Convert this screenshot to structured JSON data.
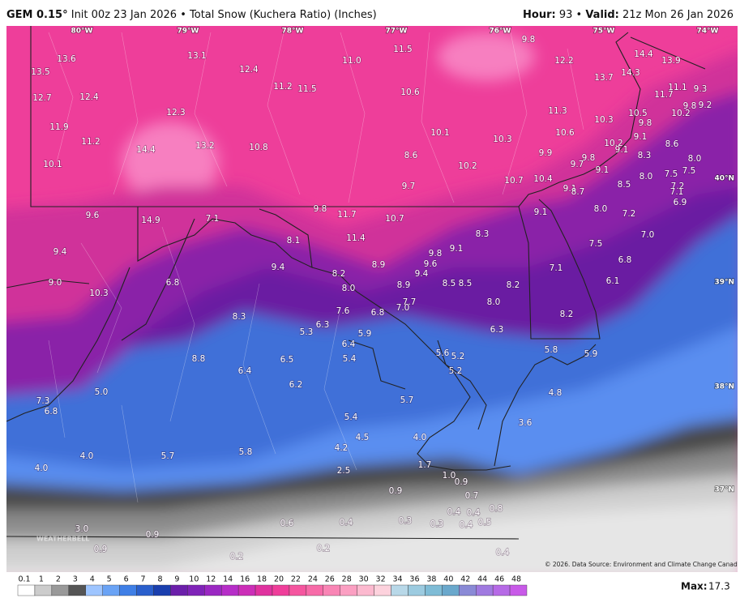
{
  "header": {
    "model": "GEM 0.15°",
    "init": "Init 00z 23 Jan 2026 • Total Snow (Kuchera Ratio) (Inches)",
    "hour_label": "Hour:",
    "hour": "93 •",
    "valid_label": "Valid:",
    "valid": "21z Mon 26 Jan 2026"
  },
  "map": {
    "longitudes": [
      "80°W",
      "79°W",
      "78°W",
      "77°W",
      "76°W",
      "75°W",
      "74°W"
    ],
    "latitudes": [
      "40°N",
      "39°N",
      "38°N",
      "37°N"
    ],
    "labels": [
      "13.6",
      "13.5",
      "12.7",
      "12.4",
      "13.1",
      "12.4",
      "11.0",
      "11.5",
      "9.8",
      "12.2",
      "14.4",
      "13.9",
      "13.7",
      "14.3",
      "11.2",
      "11.5",
      "10.6",
      "11.1",
      "9.3",
      "11.7",
      "9.8",
      "9.2",
      "10.2",
      "12.3",
      "11.3",
      "10.5",
      "10.3",
      "9.8",
      "11.9",
      "10.1",
      "10.3",
      "10.6",
      "10.2",
      "9.1",
      "11.2",
      "14.4",
      "13.2",
      "10.8",
      "8.6",
      "9.9",
      "9.1",
      "8.3",
      "8.6",
      "9.8",
      "8.0",
      "10.1",
      "10.2",
      "9.7",
      "9.1",
      "8.0",
      "7.5",
      "7.5",
      "10.7",
      "10.4",
      "8.5",
      "7.2",
      "7.1",
      "9.7",
      "9.1",
      "8.7",
      "6.9",
      "9.1",
      "8.0",
      "7.2",
      "9.6",
      "14.9",
      "7.1",
      "9.8",
      "11.7",
      "10.7",
      "7.0",
      "8.3",
      "8.1",
      "11.4",
      "7.5",
      "9.4",
      "9.1",
      "9.8",
      "9.6",
      "9.4",
      "8.9",
      "9.4",
      "6.8",
      "7.1",
      "8.2",
      "6.8",
      "9.0",
      "8.0",
      "8.9",
      "8.5",
      "8.5",
      "8.2",
      "6.1",
      "10.3",
      "7.7",
      "8.0",
      "7.6",
      "6.8",
      "7.0",
      "8.3",
      "8.2",
      "6.3",
      "5.3",
      "5.9",
      "6.4",
      "6.3",
      "5.8",
      "5.9",
      "5.6",
      "5.2",
      "5.4",
      "8.8",
      "6.5",
      "5.2",
      "6.4",
      "6.2",
      "5.0",
      "4.8",
      "5.7",
      "7.3",
      "6.8",
      "5.4",
      "3.6",
      "4.5",
      "4.0",
      "4.2",
      "5.8",
      "5.7",
      "4.0",
      "1.7",
      "4.0",
      "2.5",
      "1.0",
      "0.9",
      "0.9",
      "0.7",
      "0.8",
      "0.4",
      "0.4",
      "0.6",
      "0.4",
      "0.3",
      "0.3",
      "0.4",
      "0.5",
      "3.0",
      "0.9",
      "0.2",
      "0.9",
      "0.2",
      "0.4"
    ],
    "logo": "WEATHERBELL",
    "credit": "© 2026. Data Source: Environment and Climate Change Canada."
  },
  "legend": {
    "levels": [
      "0.1",
      "1",
      "2",
      "3",
      "4",
      "5",
      "6",
      "7",
      "8",
      "9",
      "10",
      "12",
      "14",
      "16",
      "18",
      "20",
      "22",
      "24",
      "26",
      "28",
      "30",
      "32",
      "34",
      "36",
      "38",
      "40",
      "42",
      "44",
      "46",
      "48"
    ],
    "max_label": "Max:",
    "max": "17.3"
  }
}
